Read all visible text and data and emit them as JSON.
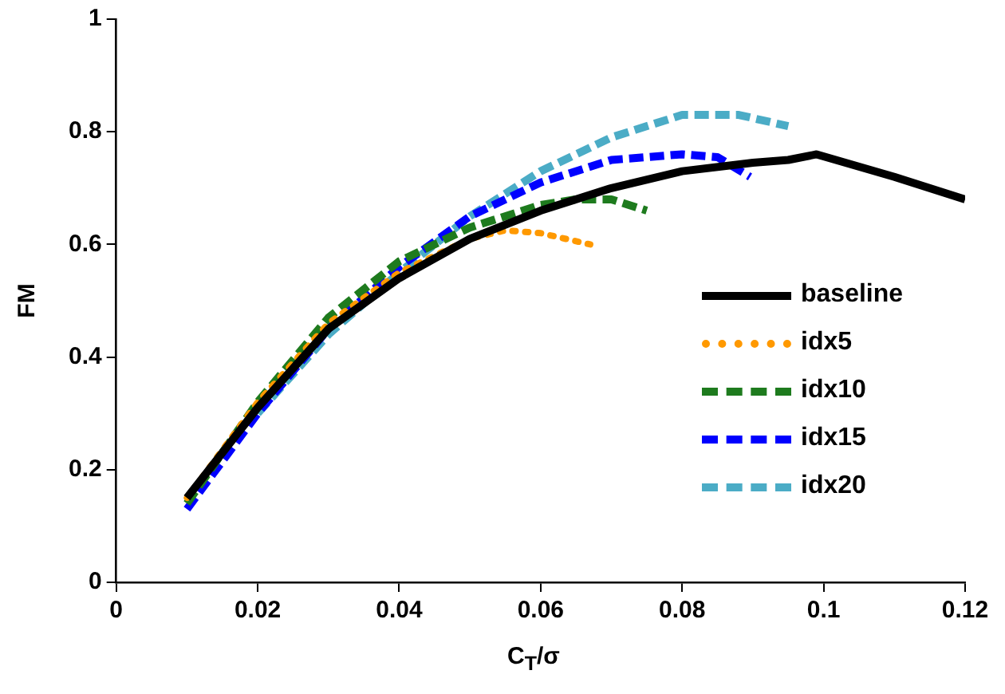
{
  "chart_data": {
    "type": "line",
    "xlabel": "C$_{T}$/σ",
    "ylabel": "FM",
    "xlim": [
      0,
      0.12
    ],
    "xticks": [
      0,
      0.02,
      0.04,
      0.06,
      0.08,
      0.1,
      0.12
    ],
    "ylim": [
      0,
      1
    ],
    "yticks": [
      0,
      0.2,
      0.4,
      0.6,
      0.8,
      1
    ],
    "grid": false,
    "legend": "right",
    "marker": "none",
    "series": [
      {
        "name": "baseline",
        "color": "#000000",
        "line_style": "solid",
        "x": [
          0.01,
          0.02,
          0.03,
          0.04,
          0.05,
          0.06,
          0.07,
          0.08,
          0.09,
          0.095,
          0.099,
          0.11,
          0.12
        ],
        "values": [
          0.15,
          0.31,
          0.45,
          0.54,
          0.61,
          0.66,
          0.7,
          0.73,
          0.745,
          0.75,
          0.76,
          0.72,
          0.68
        ]
      },
      {
        "name": "idx5",
        "color": "#ff9900",
        "line_style": "dotted",
        "x": [
          0.01,
          0.02,
          0.03,
          0.04,
          0.05,
          0.055,
          0.06,
          0.067
        ],
        "values": [
          0.15,
          0.32,
          0.46,
          0.55,
          0.61,
          0.625,
          0.62,
          0.6
        ]
      },
      {
        "name": "idx10",
        "color": "#1e7b1e",
        "line_style": "dashed",
        "x": [
          0.01,
          0.02,
          0.03,
          0.04,
          0.05,
          0.06,
          0.065,
          0.07,
          0.075
        ],
        "values": [
          0.14,
          0.32,
          0.47,
          0.57,
          0.63,
          0.67,
          0.68,
          0.68,
          0.66
        ]
      },
      {
        "name": "idx15",
        "color": "#0000ff",
        "line_style": "dashed",
        "x": [
          0.01,
          0.02,
          0.03,
          0.04,
          0.05,
          0.06,
          0.07,
          0.08,
          0.085,
          0.0896
        ],
        "values": [
          0.13,
          0.3,
          0.45,
          0.56,
          0.65,
          0.71,
          0.75,
          0.76,
          0.755,
          0.72
        ]
      },
      {
        "name": "idx20",
        "color": "#4bacc6",
        "line_style": "dashed",
        "x": [
          0.02,
          0.03,
          0.04,
          0.05,
          0.06,
          0.07,
          0.08,
          0.088,
          0.095
        ],
        "values": [
          0.3,
          0.44,
          0.55,
          0.65,
          0.73,
          0.79,
          0.83,
          0.83,
          0.81
        ]
      }
    ]
  }
}
